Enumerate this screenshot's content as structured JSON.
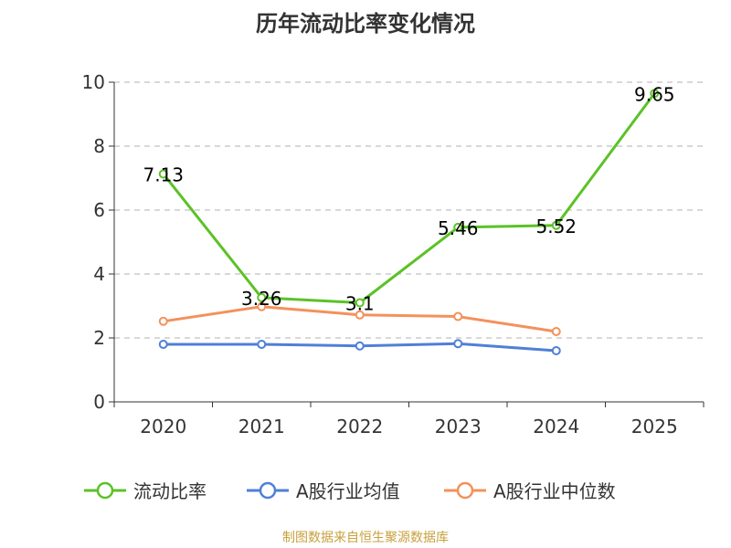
{
  "chart_data": {
    "type": "line",
    "title": "历年流动比率变化情况",
    "categories": [
      "2020",
      "2021",
      "2022",
      "2023",
      "2024",
      "2025"
    ],
    "ylim": [
      0,
      10
    ],
    "yticks": [
      0,
      2,
      4,
      6,
      8,
      10
    ],
    "grid": true,
    "legend_position": "bottom",
    "series": [
      {
        "name": "流动比率",
        "color": "#5bc227",
        "values": [
          7.13,
          3.26,
          3.1,
          5.46,
          5.52,
          9.65
        ],
        "labels": [
          "7.13",
          "3.26",
          "3.1",
          "5.46",
          "5.52",
          "9.65"
        ]
      },
      {
        "name": "A股行业均值",
        "color": "#4f7fd8",
        "values": [
          1.8,
          1.8,
          1.75,
          1.82,
          1.6,
          null
        ]
      },
      {
        "name": "A股行业中位数",
        "color": "#f3915b",
        "values": [
          2.52,
          2.98,
          2.72,
          2.67,
          2.2,
          null
        ]
      }
    ]
  },
  "source": "制图数据来自恒生聚源数据库"
}
